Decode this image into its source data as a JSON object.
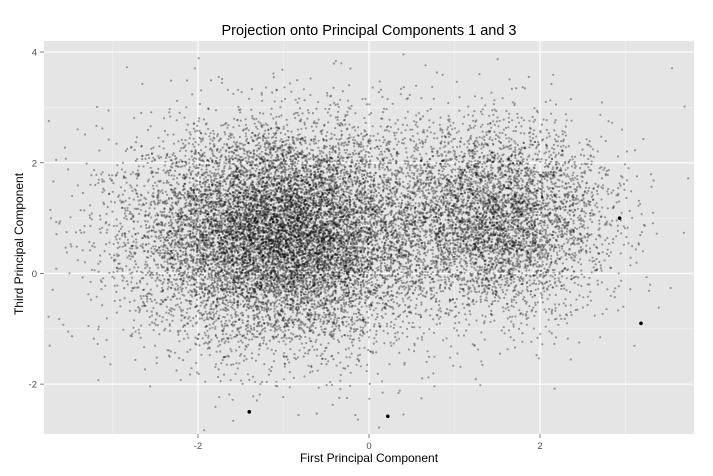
{
  "chart_data": {
    "type": "scatter",
    "title": "Projection onto Principal Components 1 and 3",
    "xlabel": "First Principal Component",
    "ylabel": "Third Principal Component",
    "xlim": [
      -3.8,
      3.8
    ],
    "ylim": [
      -2.9,
      4.2
    ],
    "x_ticks": [
      -2,
      0,
      2
    ],
    "y_ticks": [
      -2,
      0,
      2,
      4
    ],
    "grid": true,
    "background_color": "#e5e5e5",
    "grid_color": "#ffffff",
    "point_color": "#000000",
    "point_alpha": 0.35,
    "approx_point_count": 17000,
    "clusters": [
      {
        "center_x": -1.0,
        "center_y": 0.7,
        "sd_x": 0.85,
        "sd_y": 0.95,
        "share": 0.72
      },
      {
        "center_x": 1.5,
        "center_y": 1.0,
        "sd_x": 0.65,
        "sd_y": 0.85,
        "share": 0.28
      }
    ],
    "highlighted_points": [
      {
        "x": -1.4,
        "y": -2.5
      },
      {
        "x": 0.22,
        "y": -2.58
      },
      {
        "x": 2.93,
        "y": 1.0
      },
      {
        "x": 3.18,
        "y": -0.9
      }
    ]
  }
}
